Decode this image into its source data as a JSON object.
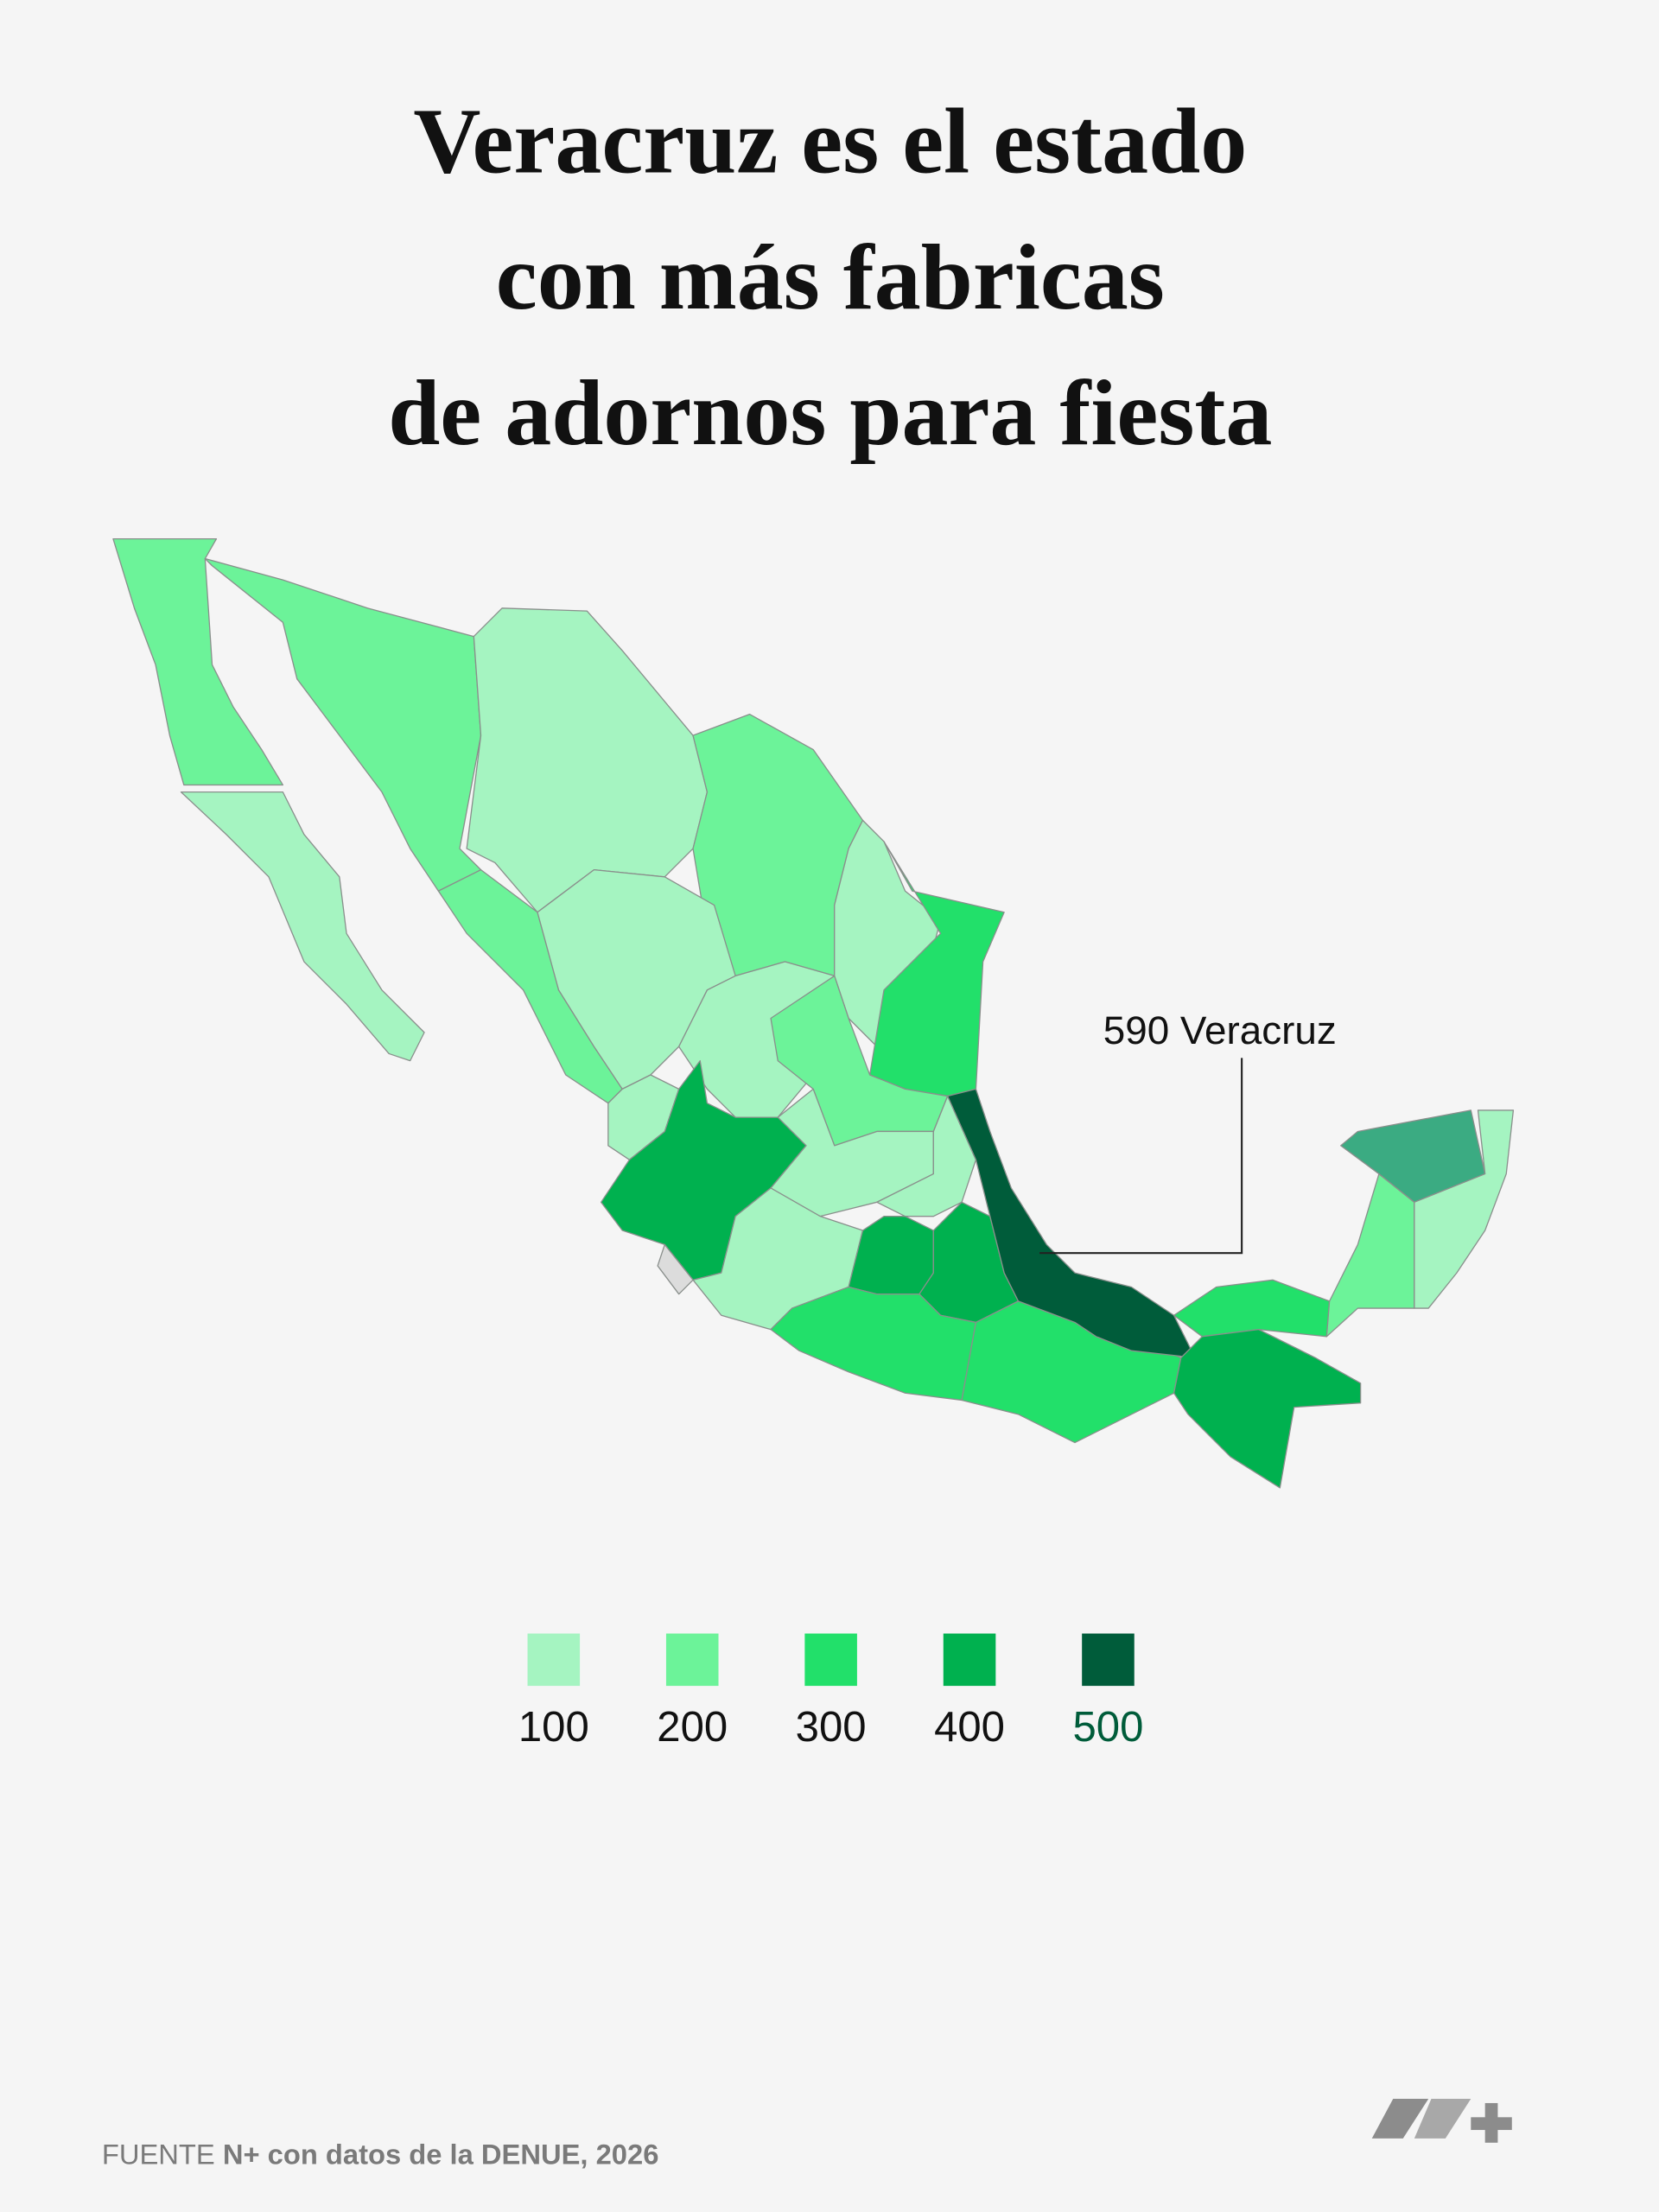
{
  "chart_data": {
    "type": "choropleth",
    "title": [
      "Veracruz es el estado",
      "con más fabricas",
      "de adornos para fiesta"
    ],
    "annotation": {
      "value": 590,
      "label": "590 Veracruz"
    },
    "legend": {
      "values": [
        100,
        200,
        300,
        400,
        500
      ],
      "colors": [
        "#a5f4c1",
        "#6cf399",
        "#22e06a",
        "#00b14f",
        "#005c3a"
      ]
    },
    "region_colors": [
      "#6cf399",
      "#a5f4c1",
      "#6cf399",
      "#a5f4c1",
      "#6cf399",
      "#a5f4c1",
      "#22e06a",
      "#6cf399",
      "#a5f4c1",
      "#a5f4c1",
      "#6cf399",
      "#a5f4c1",
      "#00b14f",
      "#dcdcdc",
      "#a5f4c1",
      "#a5f4c1",
      "#a5f4c1",
      "#00b14f",
      "#00b14f",
      "#22e06a",
      "#22e06a",
      "#005c3a",
      "#22e06a",
      "#00b14f",
      "#6cf399",
      "#3bab82",
      "#a5f4c1"
    ],
    "source": {
      "prefix": "FUENTE",
      "text": "N+ con datos de la DENUE, 2026"
    }
  }
}
